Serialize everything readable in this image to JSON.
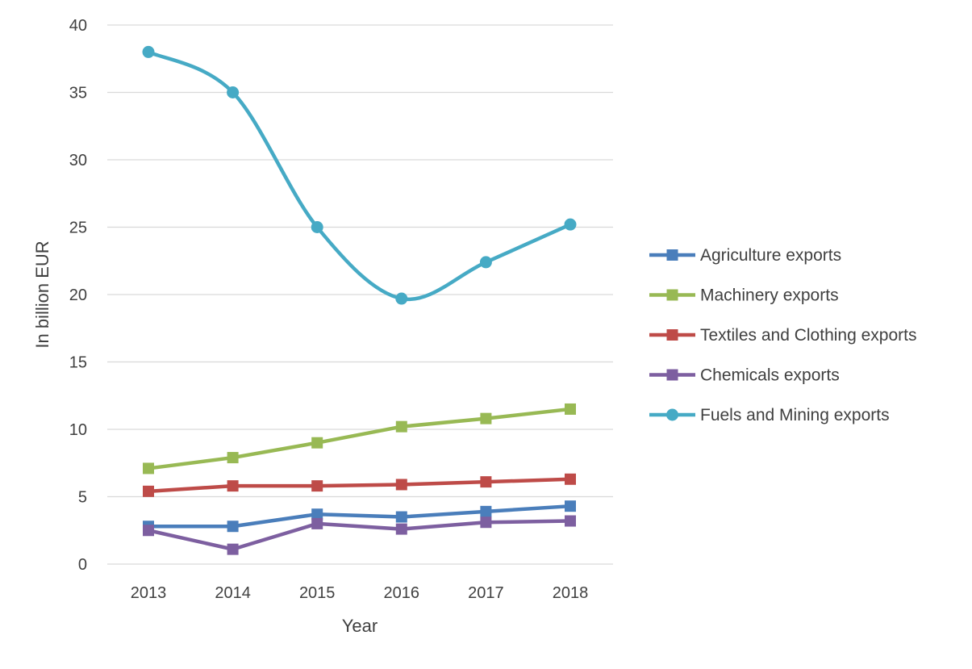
{
  "chart_data": {
    "type": "line",
    "title": "",
    "xlabel": "Year",
    "ylabel": "In billion EUR",
    "ylim": [
      0,
      40
    ],
    "yticks": [
      0,
      5,
      10,
      15,
      20,
      25,
      30,
      35,
      40
    ],
    "grid": "horizontal",
    "legend_position": "right",
    "categories": [
      "2013",
      "2014",
      "2015",
      "2016",
      "2017",
      "2018"
    ],
    "series": [
      {
        "name": "Agriculture exports",
        "color": "#4a7ebb",
        "marker": "square",
        "smooth": false,
        "values": [
          2.8,
          2.8,
          3.7,
          3.5,
          3.9,
          4.3
        ]
      },
      {
        "name": "Machinery exports",
        "color": "#98b954",
        "marker": "square",
        "smooth": false,
        "values": [
          7.1,
          7.9,
          9.0,
          10.2,
          10.8,
          11.5
        ]
      },
      {
        "name": "Textiles and Clothing exports",
        "color": "#be4b48",
        "marker": "square",
        "smooth": false,
        "values": [
          5.4,
          5.8,
          5.8,
          5.9,
          6.1,
          6.3
        ]
      },
      {
        "name": "Chemicals exports",
        "color": "#7d5fa0",
        "marker": "square",
        "smooth": false,
        "values": [
          2.5,
          1.1,
          3.0,
          2.6,
          3.1,
          3.2
        ]
      },
      {
        "name": "Fuels and Mining exports",
        "color": "#46aac5",
        "marker": "circle",
        "smooth": true,
        "values": [
          38.0,
          35.0,
          25.0,
          19.7,
          22.4,
          25.2
        ]
      }
    ]
  }
}
